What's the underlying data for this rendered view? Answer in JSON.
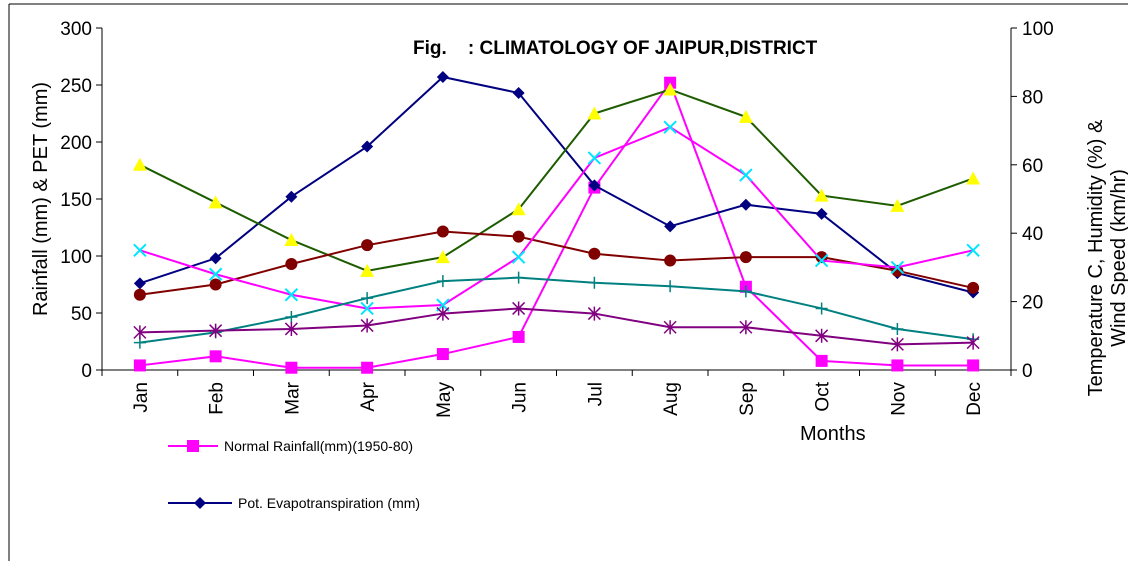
{
  "chart_data": {
    "type": "line",
    "title": "Fig.    : CLIMATOLOGY OF JAIPUR,DISTRICT",
    "xlabel": "Months",
    "ylabel": "Rainfall (mm) & PET (mm)",
    "y2label_line1": "Temperature C, Humidity (%) &",
    "y2label_line2": "Wind Speed (km/hr)",
    "categories": [
      "Jan",
      "Feb",
      "Mar",
      "Apr",
      "May",
      "Jun",
      "Jul",
      "Aug",
      "Sep",
      "Oct",
      "Nov",
      "Dec"
    ],
    "ylim": [
      0,
      300
    ],
    "y_ticks": [
      "0",
      "50",
      "100",
      "150",
      "200",
      "250",
      "300"
    ],
    "y2lim": [
      0,
      100
    ],
    "y2_ticks": [
      "0",
      "20",
      "40",
      "60",
      "80",
      "100"
    ],
    "grid": false,
    "legend_position": "bottom-left",
    "series": [
      {
        "name": "Normal Rainfall(mm)(1950-80)",
        "axis": "left",
        "color": "#ff00ff",
        "marker": "square",
        "values": [
          4,
          12,
          2,
          2,
          14,
          29,
          160,
          252,
          73,
          8,
          4,
          4
        ]
      },
      {
        "name": "Pot. Evapotranspiration (mm)",
        "axis": "left",
        "color": "#000080",
        "marker": "diamond",
        "values": [
          76,
          98,
          152,
          196,
          257,
          243,
          162,
          126,
          145,
          137,
          85,
          68
        ]
      },
      {
        "axis": "right",
        "color": "#1e5c00",
        "marker": "triangle",
        "marker_color": "#ffff00",
        "values": [
          60,
          49,
          38,
          29,
          33,
          47,
          75,
          82,
          74,
          51,
          48,
          56
        ]
      },
      {
        "axis": "right",
        "color": "#800000",
        "marker": "circle",
        "values": [
          22,
          25,
          31,
          36.5,
          40.5,
          39,
          34,
          32,
          33,
          33,
          29,
          24
        ]
      },
      {
        "axis": "right",
        "color": "#ff00ff",
        "marker": "x",
        "marker_color": "#00e5ff",
        "values": [
          35,
          28,
          22,
          18,
          19,
          33,
          62,
          71,
          57,
          32,
          30,
          35
        ]
      },
      {
        "axis": "right",
        "color": "#008080",
        "marker": "plus",
        "values": [
          8,
          11,
          15.5,
          21,
          26,
          27,
          25.5,
          24.5,
          23,
          18,
          12,
          9
        ]
      },
      {
        "axis": "right",
        "color": "#800080",
        "marker": "star",
        "values": [
          11,
          11.5,
          12,
          13,
          16.5,
          18,
          16.5,
          12.5,
          12.5,
          10,
          7.5,
          8
        ]
      }
    ]
  }
}
